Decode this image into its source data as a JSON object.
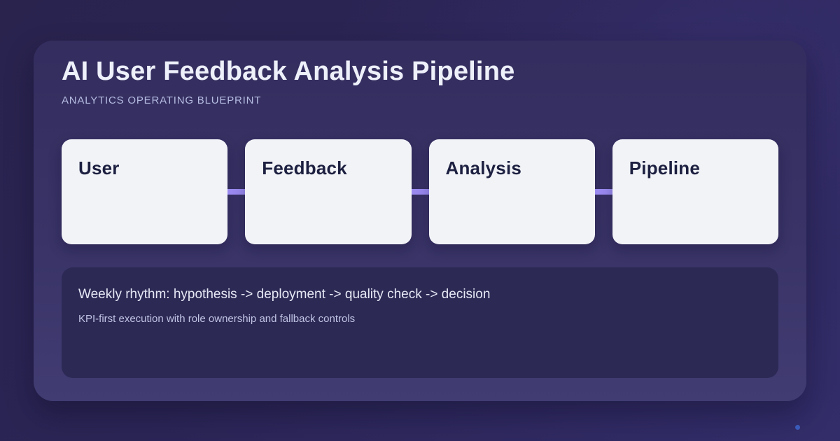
{
  "page": {
    "title": "AI User Feedback Analysis Pipeline",
    "subtitle": "ANALYTICS OPERATING BLUEPRINT"
  },
  "flow": {
    "nodes": [
      {
        "label": "User"
      },
      {
        "label": "Feedback"
      },
      {
        "label": "Analysis"
      },
      {
        "label": "Pipeline"
      }
    ]
  },
  "summary": {
    "headline": "Weekly rhythm: hypothesis -> deployment -> quality check -> decision",
    "subtext": "KPI-first execution with role ownership and fallback controls"
  },
  "colors": {
    "background_top": "#29234e",
    "background_bottom": "#332d6a",
    "panel": "#393367",
    "summary_panel": "#2d2955",
    "card_background": "#f2f3f7",
    "card_text": "#1d2040",
    "connector": "#9a8af0",
    "title_text": "#eef0fa",
    "subtitle_text": "#b6bce2",
    "accent_dot": "#3c63c8"
  }
}
